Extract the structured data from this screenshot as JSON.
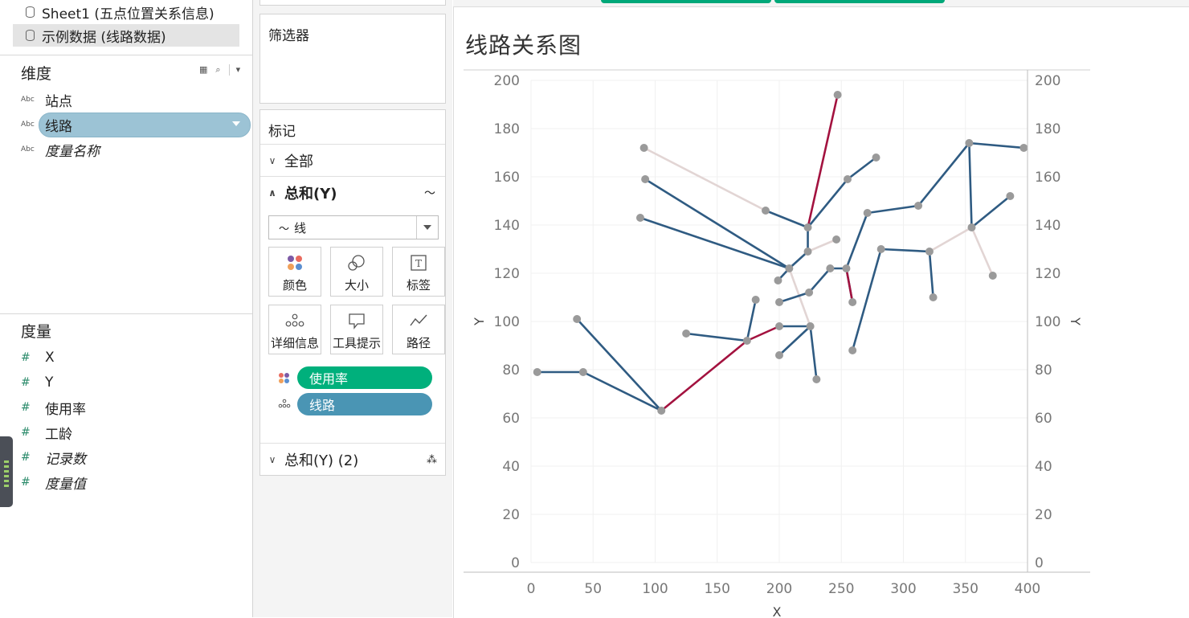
{
  "datasources": [
    {
      "label": "Sheet1 (五点位置关系信息)"
    },
    {
      "label": "示例数据 (线路数据)"
    }
  ],
  "dimensions": {
    "title": "维度",
    "fields": [
      "站点",
      "线路",
      "度量名称"
    ],
    "type_badge": "Abc"
  },
  "measures": {
    "title": "度量",
    "fields": [
      "X",
      "Y",
      "使用率",
      "工龄",
      "记录数",
      "度量值"
    ],
    "type_badge": "#"
  },
  "filters": {
    "title": "筛选器"
  },
  "marks": {
    "title": "标记",
    "all_label": "全部",
    "sum_y_label": "总和(Y)",
    "sum_y2_label": "总和(Y) (2)",
    "mark_type": "线",
    "buttons": [
      "颜色",
      "大小",
      "标签",
      "详细信息",
      "工具提示",
      "路径"
    ],
    "pills": [
      {
        "label": "使用率",
        "color": "#00b07c"
      },
      {
        "label": "线路",
        "color": "#4a95b4"
      }
    ]
  },
  "colors": {
    "dark": "#2f5b82",
    "red": "#a3123f",
    "light": "#e2d5d4",
    "point": "#9a9a9a"
  },
  "chart_data": {
    "type": "line",
    "title": "线路关系图",
    "xlabel": "X",
    "ylabel": "Y",
    "xlim": [
      0,
      400
    ],
    "ylim": [
      0,
      200
    ],
    "x_ticks": [
      0,
      50,
      100,
      150,
      200,
      250,
      300,
      350,
      400
    ],
    "y_ticks": [
      0,
      20,
      40,
      60,
      80,
      100,
      120,
      140,
      160,
      180,
      200
    ],
    "dual_axis": true,
    "grid": true,
    "segments": [
      {
        "color": "dark",
        "points": [
          [
            5,
            79
          ],
          [
            42,
            79
          ],
          [
            105,
            63
          ],
          [
            37,
            101
          ]
        ]
      },
      {
        "color": "red",
        "points": [
          [
            105,
            63
          ],
          [
            174,
            92
          ],
          [
            200,
            98
          ]
        ]
      },
      {
        "color": "dark",
        "points": [
          [
            200,
            98
          ],
          [
            225,
            98
          ],
          [
            230,
            76
          ]
        ]
      },
      {
        "color": "dark",
        "points": [
          [
            225,
            98
          ],
          [
            200,
            86
          ]
        ]
      },
      {
        "color": "dark",
        "points": [
          [
            174,
            92
          ],
          [
            181,
            109
          ]
        ]
      },
      {
        "color": "dark",
        "points": [
          [
            174,
            92
          ],
          [
            125,
            95
          ]
        ]
      },
      {
        "color": "light",
        "points": [
          [
            225,
            98
          ],
          [
            208,
            122
          ]
        ]
      },
      {
        "color": "dark",
        "points": [
          [
            200,
            108
          ],
          [
            224,
            112
          ],
          [
            241,
            122
          ],
          [
            254,
            122
          ],
          [
            259,
            108
          ]
        ]
      },
      {
        "color": "dark",
        "points": [
          [
            208,
            122
          ],
          [
            199,
            117
          ]
        ]
      },
      {
        "color": "dark",
        "points": [
          [
            208,
            122
          ],
          [
            88,
            143
          ]
        ]
      },
      {
        "color": "dark",
        "points": [
          [
            208,
            122
          ],
          [
            92,
            159
          ]
        ]
      },
      {
        "color": "dark",
        "points": [
          [
            208,
            122
          ],
          [
            223,
            129
          ],
          [
            223,
            139
          ]
        ]
      },
      {
        "color": "light",
        "points": [
          [
            223,
            129
          ],
          [
            246,
            134
          ]
        ]
      },
      {
        "color": "light",
        "points": [
          [
            91,
            172
          ],
          [
            189,
            146
          ]
        ]
      },
      {
        "color": "dark",
        "points": [
          [
            189,
            146
          ],
          [
            223,
            139
          ]
        ]
      },
      {
        "color": "red",
        "points": [
          [
            223,
            139
          ],
          [
            247,
            194
          ]
        ]
      },
      {
        "color": "dark",
        "points": [
          [
            223,
            139
          ],
          [
            255,
            159
          ],
          [
            278,
            168
          ]
        ]
      },
      {
        "color": "red",
        "points": [
          [
            254,
            122
          ],
          [
            259,
            108
          ]
        ]
      },
      {
        "color": "dark",
        "points": [
          [
            254,
            122
          ],
          [
            271,
            145
          ],
          [
            312,
            148
          ],
          [
            353,
            174
          ],
          [
            397,
            172
          ]
        ]
      },
      {
        "color": "dark",
        "points": [
          [
            259,
            88
          ],
          [
            282,
            130
          ],
          [
            321,
            129
          ],
          [
            324,
            110
          ]
        ]
      },
      {
        "color": "light",
        "points": [
          [
            321,
            129
          ],
          [
            355,
            139
          ],
          [
            372,
            119
          ]
        ]
      },
      {
        "color": "dark",
        "points": [
          [
            353,
            174
          ],
          [
            355,
            139
          ],
          [
            386,
            152
          ]
        ]
      }
    ],
    "extra_points": [
      [
        246,
        134
      ]
    ]
  }
}
